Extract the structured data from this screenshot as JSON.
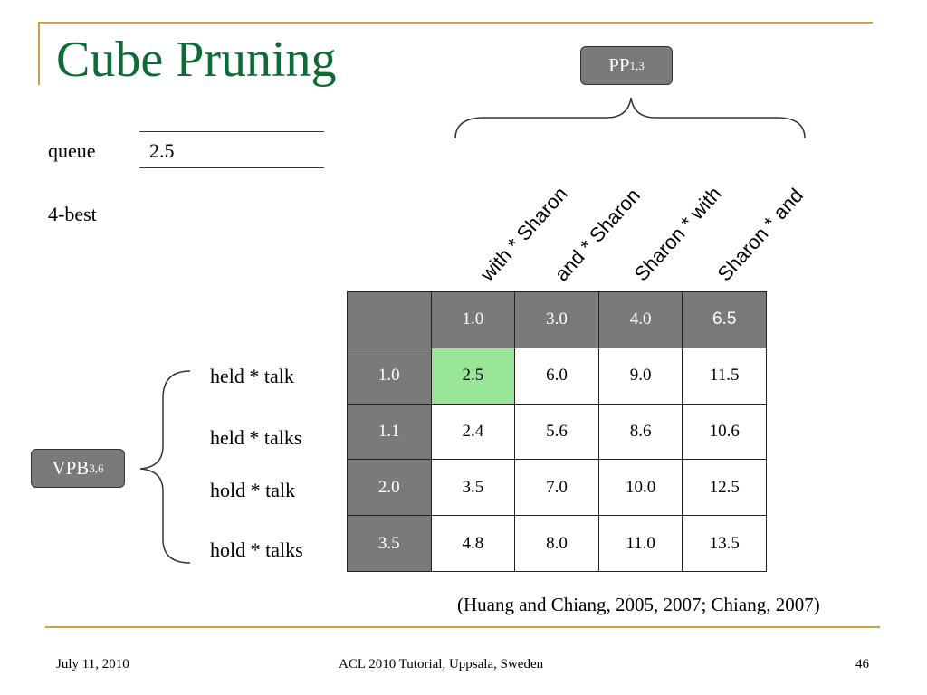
{
  "slide": {
    "title": "Cube Pruning",
    "queue_label": "queue",
    "queue_value": "2.5",
    "kbest_label": "4-best",
    "pp_node": {
      "label": "PP",
      "sub": "1,3"
    },
    "vpb_node": {
      "label": "VPB",
      "sub": "3,6"
    },
    "column_headers": [
      "with * Sharon",
      "and * Sharon",
      "Sharon *  with",
      "Sharon *   and"
    ],
    "row_headers": [
      "held * talk",
      "held * talks",
      "hold * talk",
      "hold * talks"
    ],
    "table": {
      "corner": "",
      "col_scores": [
        "1.0",
        "3.0",
        "4.0",
        "6.5"
      ],
      "rows": [
        {
          "score": "1.0",
          "cells": [
            "2.5",
            "6.0",
            "9.0",
            "11.5"
          ]
        },
        {
          "score": "1.1",
          "cells": [
            "2.4",
            "5.6",
            "8.6",
            "10.6"
          ]
        },
        {
          "score": "2.0",
          "cells": [
            "3.5",
            "7.0",
            "10.0",
            "12.5"
          ]
        },
        {
          "score": "3.5",
          "cells": [
            "4.8",
            "8.0",
            "11.0",
            "13.5"
          ]
        }
      ],
      "highlight_color": "#99e699"
    },
    "citation": "(Huang and Chiang, 2005, 2007; Chiang, 2007)"
  },
  "footer": {
    "date": "July 11, 2010",
    "venue": "ACL 2010 Tutorial, Uppsala, Sweden",
    "page": "46"
  },
  "colors": {
    "title": "#0d6b35",
    "frame": "#c8a43c",
    "header_gray": "#7a7a7a"
  }
}
